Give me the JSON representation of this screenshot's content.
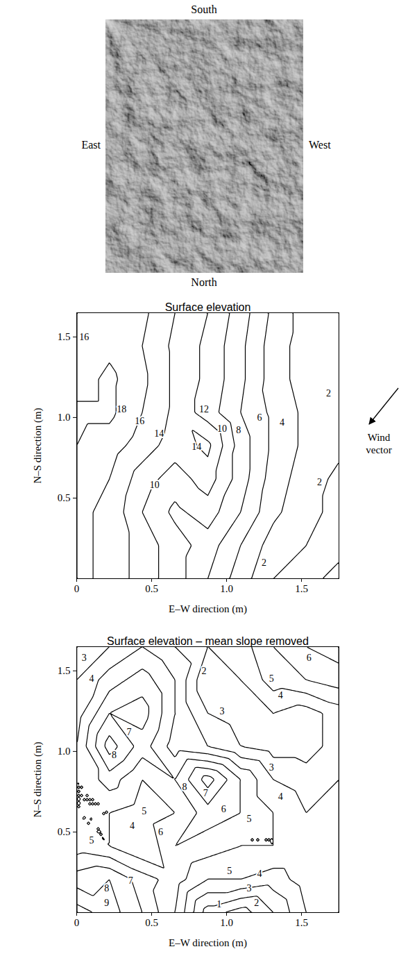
{
  "photo": {
    "labels": {
      "top": "South",
      "left": "East",
      "right": "West",
      "bottom": "North"
    }
  },
  "chart_data": [
    {
      "type": "contour",
      "title": "Surface elevation",
      "x_label": "E–W direction (m)",
      "y_label": "N–S direction (m)",
      "xlim": [
        0,
        1.75
      ],
      "ylim": [
        0,
        1.65
      ],
      "xticks": [
        0,
        0.5,
        {
          "value": 1,
          "label": "1.0"
        },
        1.5
      ],
      "yticks": [
        0.5,
        {
          "value": 1,
          "label": "1.0"
        },
        1.5
      ],
      "levels": [
        2,
        4,
        6,
        8,
        10,
        12,
        14,
        16,
        18
      ],
      "grid_x": [
        0,
        0.21875,
        0.4375,
        0.65625,
        0.875,
        1.09375,
        1.3125,
        1.53125,
        1.75
      ],
      "grid_y": [
        1.65,
        1.44375,
        1.2375,
        1.03125,
        0.825,
        0.61875,
        0.4125,
        0.20625,
        0
      ],
      "elevation": [
        [
          16.5,
          17,
          16.5,
          14,
          12,
          9,
          5.5,
          3,
          2.5
        ],
        [
          16,
          17.5,
          16,
          13.5,
          11.5,
          8.5,
          5,
          3,
          2.5
        ],
        [
          17,
          18.5,
          16.5,
          13.5,
          11.5,
          8.5,
          5,
          3,
          2.5
        ],
        [
          18.5,
          18.5,
          16,
          13.5,
          11,
          8,
          5.5,
          3.5,
          2
        ],
        [
          18,
          17,
          15,
          13,
          14.5,
          9,
          5.5,
          3.5,
          2.5
        ],
        [
          17,
          16,
          13,
          11,
          13,
          9,
          5,
          3,
          1.5
        ],
        [
          16.5,
          15.5,
          12,
          9.5,
          11,
          8,
          4.5,
          2.5,
          1.5
        ],
        [
          16.5,
          15.5,
          13,
          11,
          9,
          6,
          3,
          2,
          1.5
        ],
        [
          16.5,
          15.5,
          13,
          11,
          8,
          5,
          2,
          1.5,
          2.5
        ]
      ],
      "contour_labels": [
        {
          "x": 0.05,
          "y": 1.5,
          "value": 16
        },
        {
          "x": 0.3,
          "y": 1.05,
          "value": 18
        },
        {
          "x": 0.42,
          "y": 0.98,
          "value": 16
        },
        {
          "x": 0.55,
          "y": 0.9,
          "value": 14
        },
        {
          "x": 0.85,
          "y": 1.05,
          "value": 12
        },
        {
          "x": 0.97,
          "y": 0.93,
          "value": 10
        },
        {
          "x": 1.08,
          "y": 0.92,
          "value": 8
        },
        {
          "x": 1.22,
          "y": 1.0,
          "value": 6
        },
        {
          "x": 1.37,
          "y": 0.97,
          "value": 4
        },
        {
          "x": 1.68,
          "y": 1.15,
          "value": 2
        },
        {
          "x": 1.62,
          "y": 0.6,
          "value": 2
        },
        {
          "x": 0.8,
          "y": 0.82,
          "value": 14
        },
        {
          "x": 0.52,
          "y": 0.58,
          "value": 10
        },
        {
          "x": 1.25,
          "y": 0.1,
          "value": 2
        }
      ],
      "annotation": "Wind vector"
    },
    {
      "type": "contour",
      "title": "Surface elevation – mean slope removed",
      "x_label": "E–W direction (m)",
      "y_label": "N–S direction (m)",
      "xlim": [
        0,
        1.75
      ],
      "ylim": [
        0,
        1.65
      ],
      "xticks": [
        0,
        0.5,
        {
          "value": 1,
          "label": "1.0"
        },
        1.5
      ],
      "yticks": [
        0.5,
        {
          "value": 1,
          "label": "1.0"
        },
        1.5
      ],
      "levels": [
        1,
        2,
        3,
        4,
        5,
        6,
        7,
        8,
        9
      ],
      "grid_x": [
        0,
        0.21875,
        0.4375,
        0.65625,
        0.875,
        1.09375,
        1.3125,
        1.53125,
        1.75
      ],
      "grid_y": [
        1.65,
        1.44375,
        1.2375,
        1.03125,
        0.825,
        0.61875,
        0.4125,
        0.20625,
        0
      ],
      "elevation": [
        [
          3,
          4,
          5,
          4,
          3,
          3.5,
          5,
          6,
          6.5
        ],
        [
          4,
          5.5,
          6.5,
          5,
          2,
          3,
          4.5,
          5,
          5.5
        ],
        [
          4.5,
          7,
          7.5,
          5,
          3,
          2.5,
          3,
          2.5,
          3.5
        ],
        [
          5,
          8.5,
          6.5,
          4.5,
          4,
          3,
          2.5,
          2.5,
          3.5
        ],
        [
          5,
          6.5,
          5,
          6,
          8.5,
          6,
          4,
          3.5,
          4
        ],
        [
          5,
          5,
          4.5,
          5,
          6.5,
          6,
          5,
          4,
          4.5
        ],
        [
          5.5,
          5,
          4,
          6,
          5.5,
          5,
          5,
          5,
          5
        ],
        [
          7.5,
          8,
          6.5,
          5.5,
          4,
          4,
          3.5,
          4.5,
          5
        ],
        [
          9.5,
          8.5,
          7,
          5,
          1.5,
          0.5,
          2,
          4,
          5
        ]
      ],
      "contour_labels": [
        {
          "x": 0.05,
          "y": 1.58,
          "value": 3
        },
        {
          "x": 0.1,
          "y": 1.45,
          "value": 4
        },
        {
          "x": 0.85,
          "y": 1.5,
          "value": 2
        },
        {
          "x": 0.97,
          "y": 1.25,
          "value": 3
        },
        {
          "x": 1.3,
          "y": 1.45,
          "value": 5
        },
        {
          "x": 1.55,
          "y": 1.58,
          "value": 6
        },
        {
          "x": 1.36,
          "y": 1.35,
          "value": 4
        },
        {
          "x": 0.35,
          "y": 1.12,
          "value": 7
        },
        {
          "x": 0.25,
          "y": 0.98,
          "value": 8
        },
        {
          "x": 1.3,
          "y": 0.9,
          "value": 3
        },
        {
          "x": 0.72,
          "y": 0.78,
          "value": 8
        },
        {
          "x": 0.86,
          "y": 0.74,
          "value": 7
        },
        {
          "x": 1.36,
          "y": 0.72,
          "value": 4
        },
        {
          "x": 0.98,
          "y": 0.64,
          "value": 6
        },
        {
          "x": 0.45,
          "y": 0.63,
          "value": 5
        },
        {
          "x": 0.37,
          "y": 0.54,
          "value": 4
        },
        {
          "x": 0.56,
          "y": 0.5,
          "value": 6
        },
        {
          "x": 1.15,
          "y": 0.58,
          "value": 5
        },
        {
          "x": 0.1,
          "y": 0.45,
          "value": 5
        },
        {
          "x": 1.02,
          "y": 0.26,
          "value": 5
        },
        {
          "x": 1.22,
          "y": 0.24,
          "value": 4
        },
        {
          "x": 1.15,
          "y": 0.15,
          "value": 3
        },
        {
          "x": 1.2,
          "y": 0.06,
          "value": 2
        },
        {
          "x": 0.95,
          "y": 0.05,
          "value": 1
        },
        {
          "x": 0.36,
          "y": 0.2,
          "value": 7
        },
        {
          "x": 0.2,
          "y": 0.15,
          "value": 8
        },
        {
          "x": 0.2,
          "y": 0.06,
          "value": 9
        }
      ]
    }
  ]
}
